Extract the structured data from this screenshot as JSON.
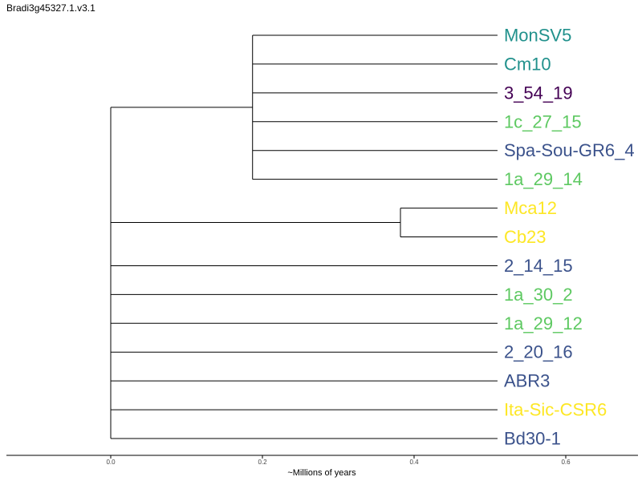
{
  "title": "Bradi3g45327.1.v3.1",
  "axis": {
    "label": "~Millions of years",
    "ticks": [
      "0.0",
      "0.2",
      "0.4",
      "0.6"
    ],
    "tick_values": [
      0.0,
      0.2,
      0.4,
      0.6
    ]
  },
  "colors": {
    "teal": "#21918c",
    "purple": "#440154",
    "green": "#5ec962",
    "navy": "#3b528b",
    "yellow": "#fde725",
    "branch": "#000000"
  },
  "leaves": [
    {
      "label": "MonSV5",
      "color": "#21918c"
    },
    {
      "label": "Cm10",
      "color": "#21918c"
    },
    {
      "label": "3_54_19",
      "color": "#440154"
    },
    {
      "label": "1c_27_15",
      "color": "#5ec962"
    },
    {
      "label": "Spa-Sou-GR6_4",
      "color": "#3b528b"
    },
    {
      "label": "1a_29_14",
      "color": "#5ec962"
    },
    {
      "label": "Mca12",
      "color": "#fde725"
    },
    {
      "label": "Cb23",
      "color": "#fde725"
    },
    {
      "label": "2_14_15",
      "color": "#3b528b"
    },
    {
      "label": "1a_30_2",
      "color": "#5ec962"
    },
    {
      "label": "1a_29_12",
      "color": "#5ec962"
    },
    {
      "label": "2_20_16",
      "color": "#3b528b"
    },
    {
      "label": "ABR3",
      "color": "#3b528b"
    },
    {
      "label": "Ita-Sic-CSR6",
      "color": "#fde725"
    },
    {
      "label": "Bd30-1",
      "color": "#3b528b"
    }
  ],
  "tree": {
    "root_age": 0.0,
    "leaf_age": 0.51,
    "clades": [
      {
        "node_age": 0.187,
        "leaves": [
          0,
          1,
          2,
          3,
          4,
          5
        ]
      },
      {
        "node_age": 0.382,
        "leaves": [
          6,
          7
        ]
      },
      {
        "node_age": null,
        "leaves": [
          8
        ]
      },
      {
        "node_age": null,
        "leaves": [
          9
        ]
      },
      {
        "node_age": null,
        "leaves": [
          10
        ]
      },
      {
        "node_age": null,
        "leaves": [
          11
        ]
      },
      {
        "node_age": null,
        "leaves": [
          12
        ]
      },
      {
        "node_age": null,
        "leaves": [
          13
        ]
      },
      {
        "node_age": null,
        "leaves": [
          14
        ]
      }
    ]
  }
}
